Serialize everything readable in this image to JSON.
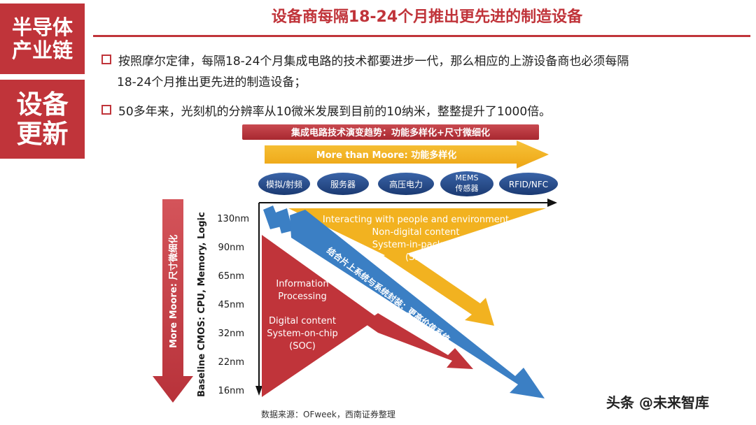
{
  "sidebar": {
    "tag_top": "半导体\n产业链",
    "tag_bottom": "设备\n更新"
  },
  "header": {
    "title": "设备商每隔18-24个月推出更先进的制造设备"
  },
  "bullets": [
    {
      "line1": "按照摩尔定律，每隔18-24个月集成电路的技术都要进步一代，那么相应的上游设备商也必须每隔",
      "line2": "18-24个月推出更先进的制造设备；"
    },
    {
      "line1": "50多年来，光刻机的分辨率从10微米发展到目前的10纳米，整整提升了1000倍。"
    }
  ],
  "diagram": {
    "banner": "集成电路技术演变趋势：功能多样化+尺寸微细化",
    "more_than_moore": "More than Moore:   功能多样化",
    "pills": [
      "模拟/射频",
      "服务器",
      "高压电力",
      "MEMS\n传感器",
      "RFID/NFC"
    ],
    "more_moore": "More Moore:   尺寸微细化",
    "baseline": "Baseline CMOS: CPU, Memory, Logic",
    "nodes": [
      "130nm",
      "90nm",
      "65nm",
      "45nm",
      "32nm",
      "22nm",
      "16nm"
    ],
    "sip_text": [
      "Interacting with people and environment",
      "Non-digital content",
      "System-in-package",
      "(SIP)"
    ],
    "soc_text": [
      "Information",
      "Processing",
      "Digital content",
      "System-on-chip",
      "(SOC)"
    ],
    "diagonal": "结合片上系统与系统封装：更高价值系统",
    "colors": {
      "red": "#c0343a",
      "yellow": "#f5b31b",
      "blue": "#3b7fc4",
      "navy": "#1f3e7a"
    }
  },
  "footer": {
    "source": "数据来源：OFweek，西南证券整理",
    "watermark": "头条 @未来智库"
  }
}
